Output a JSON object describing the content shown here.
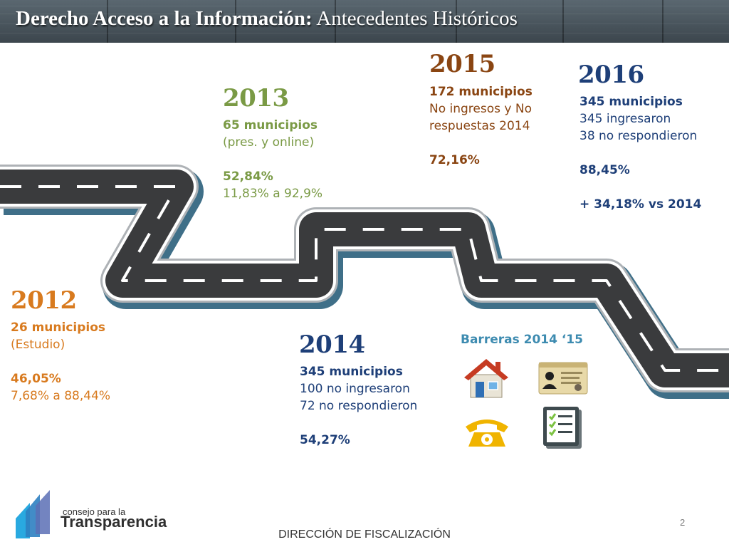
{
  "header": {
    "title_bold": "Derecho Acceso a la Información:",
    "title_rest": " Antecedentes Históricos"
  },
  "timeline": {
    "y2012": {
      "year": "2012",
      "municipios": "26 municipios",
      "detail": "(Estudio)",
      "pct": "46,05%",
      "range": "7,68% a 88,44%"
    },
    "y2013": {
      "year": "2013",
      "municipios": "65 municipios",
      "detail": "(pres. y online)",
      "pct": "52,84%",
      "range": "11,83% a 92,9%"
    },
    "y2014": {
      "year": "2014",
      "municipios": "345 municipios",
      "line1": "100 no ingresaron",
      "line2": "72 no respondieron",
      "pct": "54,27%"
    },
    "y2015": {
      "year": "2015",
      "municipios": "172 municipios",
      "line1": "No ingresos y No",
      "line2": "respuestas 2014",
      "pct": "72,16%"
    },
    "y2016": {
      "year": "2016",
      "municipios": "345 municipios",
      "line1": "345 ingresaron",
      "line2": "38 no respondieron",
      "pct": "88,45%",
      "diff": "+ 34,18% vs 2014"
    }
  },
  "barreras": {
    "label": "Barreras 2014 ‘15",
    "icons": [
      "house-icon",
      "id-card-icon",
      "telephone-icon",
      "checklist-icon"
    ]
  },
  "logo": {
    "small": "consejo para la",
    "big": "Transparencia"
  },
  "footer": {
    "text": "DIRECCIÓN DE FISCALIZACIÓN",
    "page": "2"
  },
  "colors": {
    "y2012": "#d87a1e",
    "y2013": "#7a9a45",
    "y2014": "#1e3f78",
    "y2015": "#8a4512",
    "y2016": "#1e3f78",
    "barreras": "#3d8bb0",
    "road": "#3a3b3d",
    "road_shadow": "#3f6f88"
  }
}
